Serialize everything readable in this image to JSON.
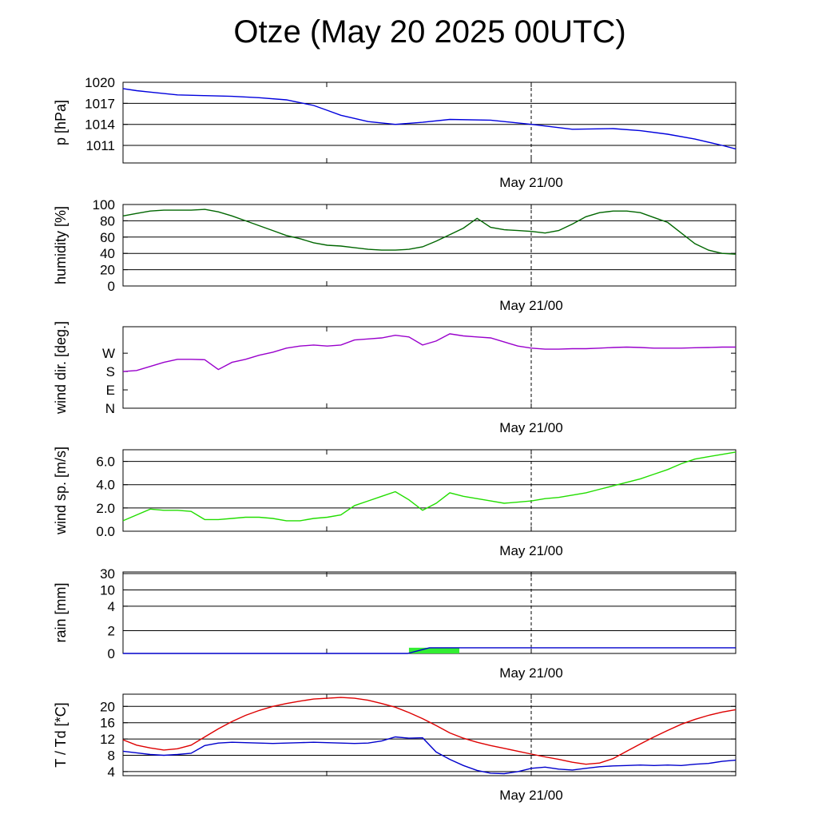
{
  "title": "Otze (May 20 2025 00UTC)",
  "date_label": "May 21/00",
  "chart_data": [
    {
      "type": "line",
      "id": "pressure",
      "ylabel": "p [hPa]",
      "ylim": [
        1008.5,
        1020
      ],
      "yticks": [
        1020,
        1017,
        1014,
        1011
      ],
      "ytick_labels": [
        "1020",
        "1017",
        "1014",
        "1011"
      ],
      "gridlines": [
        1020,
        1017,
        1014,
        1011
      ],
      "x": [
        0,
        1,
        2,
        3,
        4,
        6,
        8,
        10,
        12,
        14,
        15,
        16,
        18,
        20,
        22,
        24,
        27,
        30,
        33,
        36,
        38,
        40,
        42,
        44,
        45
      ],
      "series": [
        {
          "color": "#0000dd",
          "values": [
            1019.1,
            1018.8,
            1018.6,
            1018.4,
            1018.2,
            1018.1,
            1018.0,
            1017.8,
            1017.5,
            1016.7,
            1016.0,
            1015.3,
            1014.4,
            1014.0,
            1014.3,
            1014.7,
            1014.6,
            1014.0,
            1013.3,
            1013.4,
            1013.1,
            1012.6,
            1011.9,
            1011.0,
            1010.5
          ]
        }
      ]
    },
    {
      "type": "line",
      "id": "humidity",
      "ylabel": "humidity [%]",
      "ylim": [
        0,
        100
      ],
      "yticks": [
        100,
        80,
        60,
        40,
        20,
        0
      ],
      "ytick_labels": [
        "100",
        "80",
        "60",
        "40",
        "20",
        "0"
      ],
      "gridlines": [
        100,
        80,
        60,
        40,
        20
      ],
      "x": [
        0,
        1,
        2,
        3,
        4,
        5,
        6,
        7,
        8,
        9,
        10,
        11,
        12,
        13,
        14,
        15,
        16,
        17,
        18,
        19,
        20,
        21,
        22,
        23,
        24,
        25,
        26,
        27,
        28,
        29,
        30,
        31,
        32,
        33,
        34,
        35,
        36,
        37,
        38,
        39,
        40,
        41,
        42,
        43,
        44,
        45
      ],
      "series": [
        {
          "color": "#006600",
          "values": [
            86,
            89,
            92,
            93,
            93,
            93,
            94,
            91,
            86,
            80,
            74,
            68,
            62,
            58,
            53,
            50,
            49,
            47,
            45,
            44,
            44,
            45,
            48,
            55,
            63,
            71,
            83,
            72,
            69,
            68,
            67,
            65,
            68,
            76,
            85,
            90,
            92,
            92,
            90,
            84,
            78,
            65,
            52,
            44,
            40,
            39
          ]
        }
      ]
    },
    {
      "type": "line",
      "id": "wind_direction",
      "ylabel": "wind dir. [deg.]",
      "ylim": [
        0,
        400
      ],
      "yticks": [
        270,
        180,
        90,
        0
      ],
      "ytick_labels": [
        "W",
        "S",
        "E",
        "N"
      ],
      "gridlines": [],
      "x": [
        0,
        1,
        2,
        3,
        4,
        5,
        6,
        7,
        8,
        9,
        10,
        11,
        12,
        13,
        14,
        15,
        16,
        17,
        18,
        19,
        20,
        21,
        22,
        23,
        24,
        25,
        26,
        27,
        28,
        29,
        30,
        31,
        32,
        33,
        34,
        35,
        36,
        37,
        38,
        39,
        40,
        41,
        42,
        43,
        44,
        45
      ],
      "series": [
        {
          "color": "#9900cc",
          "values": [
            180,
            185,
            205,
            225,
            240,
            240,
            238,
            190,
            225,
            240,
            260,
            275,
            295,
            305,
            310,
            305,
            310,
            335,
            340,
            345,
            358,
            350,
            310,
            330,
            365,
            355,
            350,
            345,
            325,
            305,
            295,
            290,
            290,
            292,
            292,
            295,
            298,
            300,
            298,
            295,
            295,
            295,
            297,
            298,
            300,
            300
          ]
        }
      ]
    },
    {
      "type": "line",
      "id": "wind_speed",
      "ylabel": "wind sp. [m/s]",
      "ylim": [
        0,
        7
      ],
      "yticks": [
        6,
        4,
        2,
        0
      ],
      "ytick_labels": [
        "6.0",
        "4.0",
        "2.0",
        "0.0"
      ],
      "gridlines": [
        6,
        4,
        2
      ],
      "x": [
        0,
        1,
        2,
        3,
        4,
        5,
        6,
        7,
        8,
        9,
        10,
        11,
        12,
        13,
        14,
        15,
        16,
        17,
        18,
        19,
        20,
        21,
        22,
        23,
        24,
        25,
        26,
        27,
        28,
        29,
        30,
        31,
        32,
        33,
        34,
        35,
        36,
        37,
        38,
        39,
        40,
        41,
        42,
        43,
        44,
        45
      ],
      "series": [
        {
          "color": "#22dd00",
          "values": [
            0.9,
            1.4,
            1.9,
            1.8,
            1.8,
            1.7,
            1.0,
            1.0,
            1.1,
            1.2,
            1.2,
            1.1,
            0.9,
            0.9,
            1.1,
            1.2,
            1.4,
            2.2,
            2.6,
            3.0,
            3.4,
            2.7,
            1.8,
            2.4,
            3.3,
            3.0,
            2.8,
            2.6,
            2.4,
            2.5,
            2.6,
            2.8,
            2.9,
            3.1,
            3.3,
            3.6,
            3.9,
            4.2,
            4.5,
            4.9,
            5.3,
            5.8,
            6.2,
            6.4,
            6.6,
            6.8
          ]
        }
      ]
    },
    {
      "type": "area",
      "id": "rain",
      "ylabel": "rain [mm]",
      "scale": "nonlinear",
      "ylim": [
        0,
        30
      ],
      "yticks": [
        30,
        10,
        4,
        2,
        0
      ],
      "ytick_labels": [
        "30",
        "10",
        "4",
        "2",
        "0"
      ],
      "gridlines": [
        30,
        10,
        4,
        2
      ],
      "bars": {
        "color": "#33ee33",
        "x_start": 21,
        "x_end": 24.7,
        "value": 0.5
      },
      "x": [
        0,
        20.9,
        22.5,
        45
      ],
      "series": [
        {
          "color": "#0000cc",
          "values": [
            0,
            0,
            0.5,
            0.5
          ]
        }
      ]
    },
    {
      "type": "line",
      "id": "temperature",
      "ylabel": "T / Td [*C]",
      "ylim": [
        3,
        23
      ],
      "yticks": [
        20,
        16,
        12,
        8,
        4
      ],
      "ytick_labels": [
        "20",
        "16",
        "12",
        "8",
        "4"
      ],
      "gridlines": [
        20,
        16,
        12,
        8,
        4
      ],
      "x": [
        0,
        1,
        2,
        3,
        4,
        5,
        6,
        7,
        8,
        9,
        10,
        11,
        12,
        13,
        14,
        15,
        16,
        17,
        18,
        19,
        20,
        21,
        22,
        23,
        24,
        25,
        26,
        27,
        28,
        29,
        30,
        31,
        32,
        33,
        34,
        35,
        36,
        37,
        38,
        39,
        40,
        41,
        42,
        43,
        44,
        45
      ],
      "series": [
        {
          "color": "#dd0000",
          "values": [
            11.8,
            10.5,
            9.8,
            9.3,
            9.6,
            10.5,
            12.5,
            14.5,
            16.3,
            17.8,
            19.0,
            20.0,
            20.7,
            21.3,
            21.8,
            22.0,
            22.2,
            22.0,
            21.5,
            20.7,
            19.8,
            18.5,
            17.0,
            15.3,
            13.5,
            12.2,
            11.2,
            10.4,
            9.7,
            9.0,
            8.3,
            7.6,
            7.0,
            6.3,
            5.8,
            6.1,
            7.2,
            9.0,
            10.8,
            12.5,
            14.1,
            15.6,
            16.8,
            17.8,
            18.6,
            19.2
          ]
        },
        {
          "color": "#0000cc",
          "values": [
            9.0,
            8.6,
            8.2,
            8.0,
            8.2,
            8.5,
            10.4,
            11.0,
            11.2,
            11.1,
            11.0,
            10.9,
            11.0,
            11.1,
            11.2,
            11.1,
            11.0,
            10.9,
            11.0,
            11.5,
            12.5,
            12.2,
            12.3,
            8.8,
            7.0,
            5.5,
            4.3,
            3.6,
            3.5,
            4.0,
            4.8,
            5.1,
            4.6,
            4.4,
            4.8,
            5.2,
            5.4,
            5.5,
            5.6,
            5.5,
            5.6,
            5.5,
            5.8,
            6.0,
            6.5,
            6.8
          ]
        }
      ]
    }
  ]
}
